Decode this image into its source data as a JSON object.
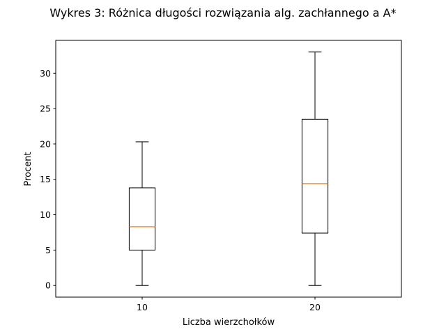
{
  "chart_data": {
    "type": "boxplot",
    "title": "Wykres 3: Różnica długości rozwiązania alg. zachłannego a A*",
    "xlabel": "Liczba wierzchołków",
    "ylabel": "Procent",
    "categories": [
      "10",
      "20"
    ],
    "boxes": [
      {
        "category": "10",
        "whisker_low": 0,
        "q1": 5.0,
        "median": 8.3,
        "q3": 13.8,
        "whisker_high": 20.3
      },
      {
        "category": "20",
        "whisker_low": 0,
        "q1": 7.4,
        "median": 14.4,
        "q3": 23.5,
        "whisker_high": 33.0
      }
    ],
    "ylim": [
      -1.65,
      34.65
    ],
    "yticks": [
      0,
      5,
      10,
      15,
      20,
      25,
      30
    ],
    "grid": false,
    "colors": {
      "box": "#000000",
      "median": "#ff7f0e"
    }
  }
}
